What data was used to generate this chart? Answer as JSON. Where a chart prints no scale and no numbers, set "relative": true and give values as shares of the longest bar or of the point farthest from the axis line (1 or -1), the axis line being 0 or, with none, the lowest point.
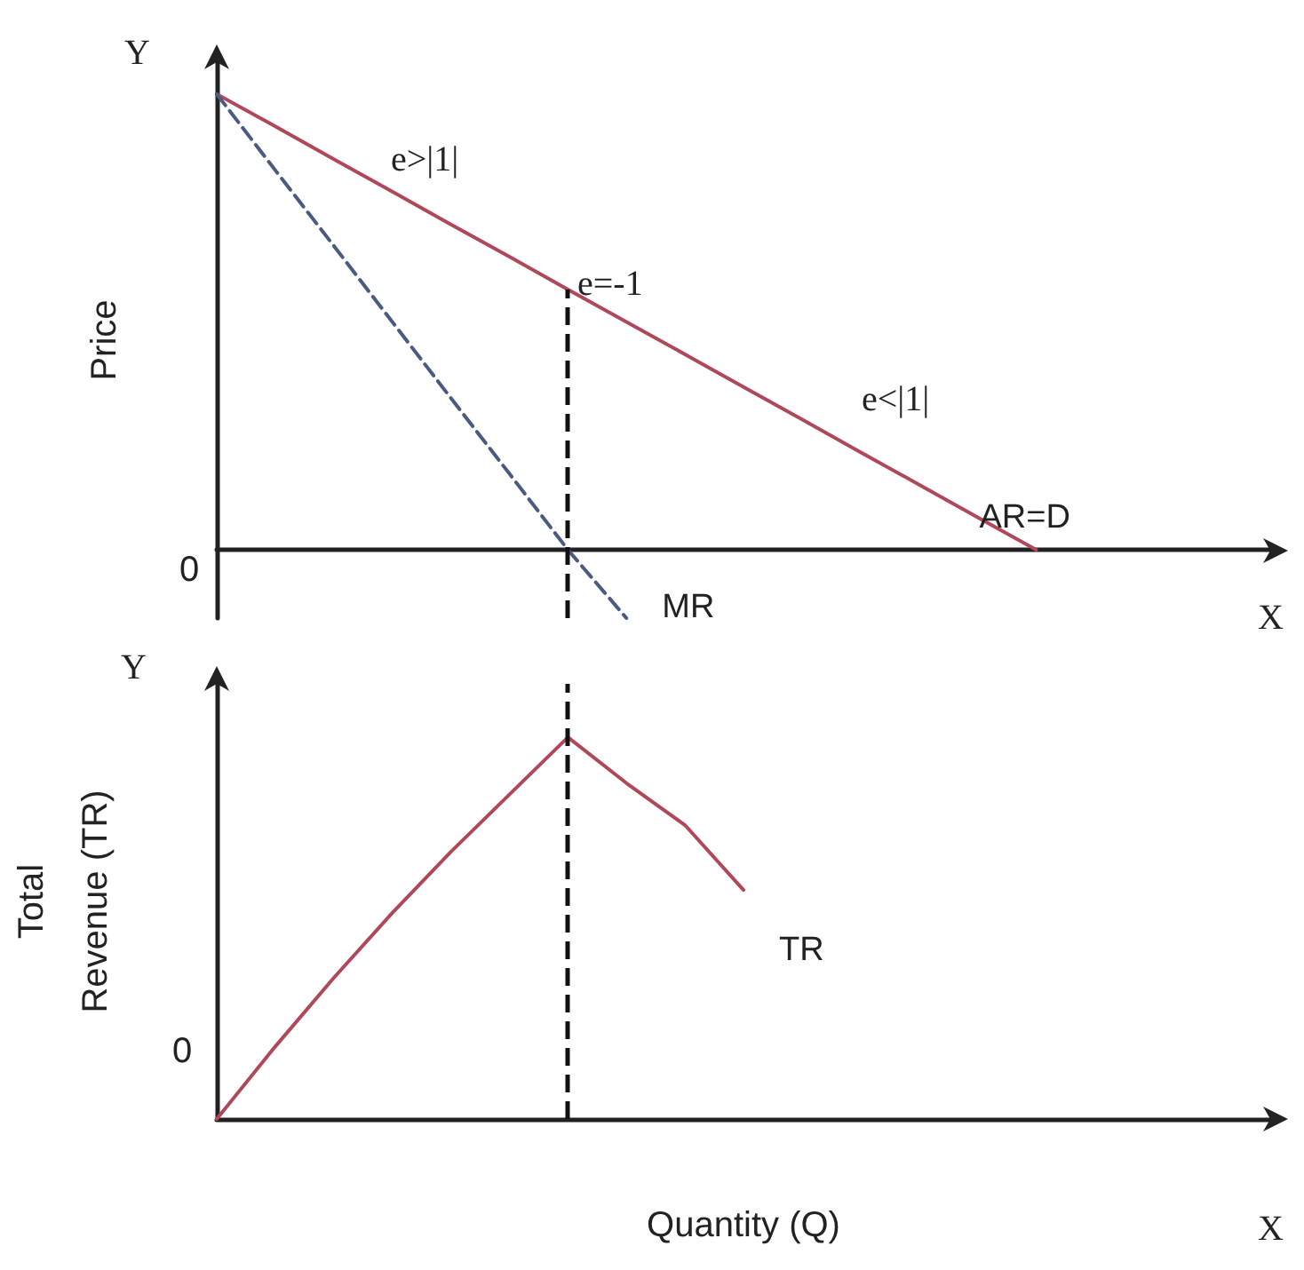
{
  "chart_data": [
    {
      "type": "line",
      "relative": true,
      "ylabel": "Price",
      "marker": "none",
      "categories": [
        null,
        null,
        null,
        null,
        null,
        null,
        null,
        null,
        null,
        null,
        null,
        null,
        null,
        null,
        null,
        null,
        null,
        null,
        null
      ],
      "series": [
        {
          "name": "AR=D",
          "color": "#b0485a",
          "line_style": "solid",
          "values": [
            1,
            0.929,
            0.857,
            0.786,
            0.714,
            0.643,
            0.571,
            0.5,
            0.429,
            0.357,
            0.286,
            0.214,
            0.143,
            0.071,
            0,
            null,
            null,
            null,
            null
          ]
        },
        {
          "name": "MR",
          "color": "#4a5a80",
          "line_style": "dashed",
          "values": [
            1,
            0.833,
            0.667,
            0.5,
            0.333,
            0.167,
            0,
            -0.15,
            null,
            null,
            null,
            null,
            null,
            null,
            null,
            null,
            null,
            null,
            null
          ]
        }
      ],
      "annotations": [
        "Y",
        "X",
        "0",
        "e>|1|",
        "e=-1",
        "e<|1|"
      ]
    },
    {
      "type": "line",
      "relative": true,
      "ylabel": "Total\nRevenue (TR)",
      "xlabel": "Quantity (Q)",
      "marker": "none",
      "categories": [
        null,
        null,
        null,
        null,
        null,
        null,
        null,
        null,
        null,
        null,
        null,
        null,
        null,
        null,
        null,
        null,
        null,
        null,
        null
      ],
      "series": [
        {
          "name": "TR",
          "color": "#b0485a",
          "line_style": "solid",
          "values": [
            0,
            0.19,
            0.37,
            0.54,
            0.7,
            0.85,
            1,
            0.88,
            0.77,
            0.6,
            null,
            null,
            null,
            null,
            null,
            null,
            null,
            null,
            null
          ]
        }
      ],
      "annotations": [
        "Y",
        "X",
        "0"
      ]
    }
  ]
}
